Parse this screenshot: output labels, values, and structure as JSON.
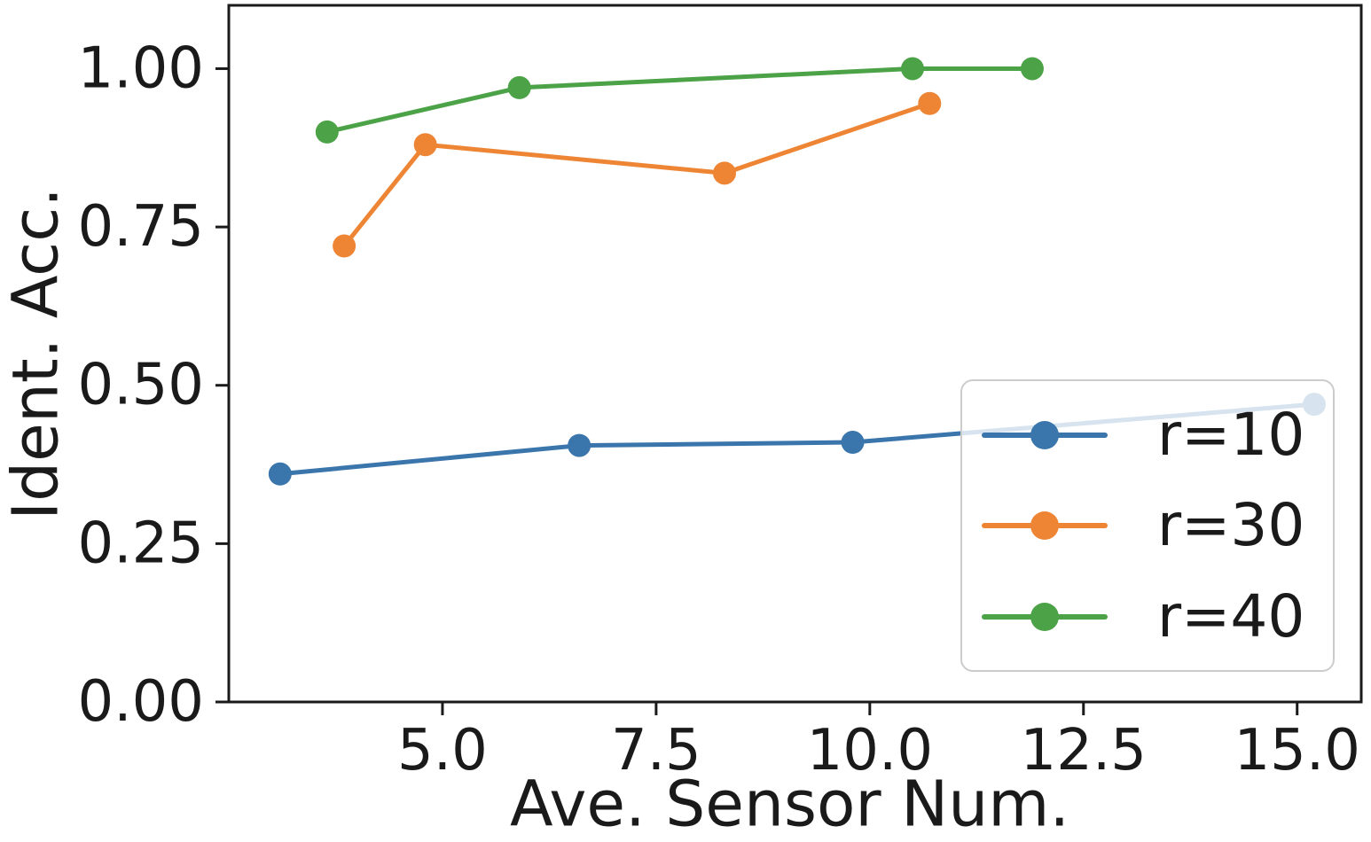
{
  "chart_data": {
    "type": "line",
    "title": "",
    "xlabel": "Ave. Sensor Num.",
    "ylabel": "Ident. Acc.",
    "xlim": [
      2.5,
      15.75
    ],
    "ylim": [
      0,
      1.1
    ],
    "grid": false,
    "frame": "full-box",
    "x_ticks": {
      "values": [
        5.0,
        7.5,
        10.0,
        12.5,
        15.0
      ],
      "labels": [
        "5.0",
        "7.5",
        "10.0",
        "12.5",
        "15.0"
      ]
    },
    "y_ticks": {
      "values": [
        0.0,
        0.25,
        0.5,
        0.75,
        1.0
      ],
      "labels": [
        "0.00",
        "0.25",
        "0.50",
        "0.75",
        "1.00"
      ]
    },
    "legend_position": "lower-right-inside",
    "series": [
      {
        "name": "r=10",
        "color": "#3a75ab",
        "points": [
          [
            3.1,
            0.36
          ],
          [
            6.6,
            0.405
          ],
          [
            9.8,
            0.41
          ],
          [
            15.2,
            0.47
          ]
        ],
        "note_last_point": "drawn beneath translucent legend so it appears faded"
      },
      {
        "name": "r=30",
        "color": "#ee8535",
        "points": [
          [
            3.85,
            0.72
          ],
          [
            4.8,
            0.88
          ],
          [
            8.3,
            0.835
          ],
          [
            10.7,
            0.945
          ]
        ]
      },
      {
        "name": "r=40",
        "color": "#4ca246",
        "points": [
          [
            3.65,
            0.9
          ],
          [
            5.9,
            0.97
          ],
          [
            10.5,
            1.0
          ],
          [
            11.9,
            1.0
          ]
        ]
      }
    ]
  },
  "legend": {
    "entries": [
      {
        "label": "r=10",
        "color": "#3a75ab"
      },
      {
        "label": "r=30",
        "color": "#ee8535"
      },
      {
        "label": "r=40",
        "color": "#4ca246"
      }
    ]
  },
  "colors": {
    "axis": "#1a1a1a",
    "tick_text": "#1a1a1a",
    "legend_border": "#cccccc"
  }
}
